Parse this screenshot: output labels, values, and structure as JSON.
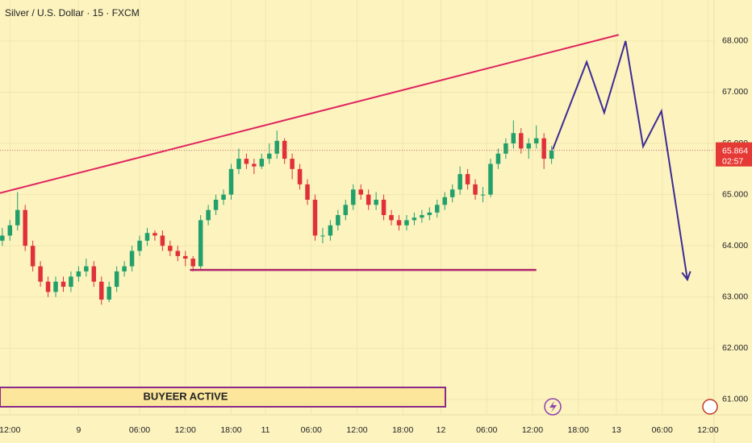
{
  "chart_data": {
    "type": "candlestick",
    "title": "Silver / U.S. Dollar · 15 · FXCM",
    "open": [
      64.1,
      64.2,
      64.4,
      64.7,
      64.0,
      63.6,
      63.3,
      63.1,
      63.3,
      63.2,
      63.4,
      63.5,
      63.6,
      63.3,
      62.95,
      63.2,
      63.5,
      63.6,
      63.9,
      64.1,
      64.25,
      64.2,
      64.0,
      63.9,
      63.8,
      63.75,
      63.6,
      64.5,
      64.7,
      64.9,
      65.0,
      65.5,
      65.7,
      65.6,
      65.55,
      65.7,
      65.8,
      66.05,
      65.7,
      65.5,
      65.2,
      64.9,
      64.2,
      64.2,
      64.4,
      64.6,
      64.8,
      65.1,
      65.0,
      64.8,
      64.9,
      64.6,
      64.5,
      64.4,
      64.5,
      64.55,
      64.6,
      64.65,
      64.8,
      64.95,
      65.1,
      65.4,
      65.2,
      65.0,
      65.0,
      65.6,
      65.8,
      66.0,
      66.2,
      65.9,
      66.0,
      66.1,
      65.7
    ],
    "high": [
      64.35,
      64.5,
      65.05,
      64.8,
      64.1,
      63.7,
      63.4,
      63.4,
      63.4,
      63.5,
      63.6,
      63.75,
      63.7,
      63.4,
      63.3,
      63.6,
      63.7,
      64.0,
      64.2,
      64.35,
      64.3,
      64.3,
      64.1,
      64.0,
      63.9,
      63.8,
      64.6,
      64.8,
      65.0,
      65.1,
      65.6,
      65.9,
      65.8,
      65.7,
      65.8,
      66.0,
      66.25,
      66.1,
      65.8,
      65.6,
      65.3,
      65.0,
      64.35,
      64.5,
      64.7,
      64.9,
      65.2,
      65.2,
      65.1,
      65.05,
      65.0,
      64.7,
      64.6,
      64.6,
      64.65,
      64.7,
      64.75,
      64.9,
      65.05,
      65.2,
      65.55,
      65.5,
      65.3,
      65.15,
      65.7,
      65.9,
      66.1,
      66.45,
      66.3,
      66.1,
      66.35,
      66.2,
      65.95
    ],
    "low": [
      64.0,
      64.1,
      64.3,
      63.9,
      63.5,
      63.2,
      63.0,
      63.0,
      63.1,
      63.1,
      63.3,
      63.4,
      63.2,
      62.85,
      62.9,
      63.1,
      63.4,
      63.5,
      63.8,
      64.0,
      64.1,
      63.9,
      63.8,
      63.7,
      63.6,
      63.5,
      63.55,
      64.4,
      64.6,
      64.8,
      64.9,
      65.4,
      65.5,
      65.4,
      65.5,
      65.6,
      65.7,
      65.6,
      65.3,
      65.1,
      64.8,
      64.1,
      64.05,
      64.1,
      64.3,
      64.5,
      64.7,
      64.9,
      64.7,
      64.7,
      64.5,
      64.4,
      64.3,
      64.3,
      64.4,
      64.45,
      64.5,
      64.55,
      64.7,
      64.85,
      65.0,
      65.1,
      64.9,
      64.85,
      64.95,
      65.5,
      65.7,
      65.9,
      65.8,
      65.7,
      65.9,
      65.5,
      65.6
    ],
    "close": [
      64.2,
      64.4,
      64.7,
      64.0,
      63.6,
      63.3,
      63.1,
      63.3,
      63.2,
      63.4,
      63.5,
      63.6,
      63.3,
      62.95,
      63.2,
      63.5,
      63.6,
      63.9,
      64.1,
      64.25,
      64.2,
      64.0,
      63.9,
      63.8,
      63.75,
      63.6,
      64.5,
      64.7,
      64.9,
      65.0,
      65.5,
      65.7,
      65.6,
      65.55,
      65.7,
      65.8,
      66.05,
      65.7,
      65.5,
      65.2,
      64.9,
      64.2,
      64.2,
      64.4,
      64.6,
      64.8,
      65.1,
      65.0,
      64.8,
      64.9,
      64.6,
      64.5,
      64.4,
      64.5,
      64.55,
      64.6,
      64.65,
      64.8,
      64.95,
      65.1,
      65.4,
      65.2,
      65.0,
      65.0,
      65.6,
      65.8,
      66.0,
      66.2,
      65.9,
      66.0,
      66.1,
      65.7,
      65.86
    ],
    "up_color": "#22a06b",
    "down_color": "#e0303a",
    "xlim": [
      -0.3,
      93.3
    ],
    "xticks": [
      {
        "value": 1,
        "label": "12:00"
      },
      {
        "value": 10,
        "label": "9"
      },
      {
        "value": 18,
        "label": "06:00"
      },
      {
        "value": 24,
        "label": "12:00"
      },
      {
        "value": 30,
        "label": "18:00"
      },
      {
        "value": 34.5,
        "label": "11"
      },
      {
        "value": 40.5,
        "label": "06:00"
      },
      {
        "value": 46.5,
        "label": "12:00"
      },
      {
        "value": 52.5,
        "label": "18:00"
      },
      {
        "value": 57.5,
        "label": "12"
      },
      {
        "value": 63.5,
        "label": "06:00"
      },
      {
        "value": 69.5,
        "label": "12:00"
      },
      {
        "value": 75.5,
        "label": "18:00"
      },
      {
        "value": 80.5,
        "label": "13"
      },
      {
        "value": 86.5,
        "label": "06:00"
      },
      {
        "value": 92.5,
        "label": "12:00"
      }
    ],
    "ylim": [
      60.7,
      68.8
    ],
    "yticks": [
      {
        "value": 61,
        "label": "61.000"
      },
      {
        "value": 62,
        "label": "62.000"
      },
      {
        "value": 63,
        "label": "63.000"
      },
      {
        "value": 64,
        "label": "64.000"
      },
      {
        "value": 65,
        "label": "65.000"
      },
      {
        "value": 66,
        "label": "66.000"
      },
      {
        "value": 67,
        "label": "67.000"
      },
      {
        "value": 68,
        "label": "68.000"
      }
    ],
    "last_price": {
      "value": 65.864,
      "label": "65.864"
    },
    "countdown": "02:57",
    "trendline": {
      "x": [
        -0.3,
        80.8
      ],
      "y": [
        65.03,
        68.12
      ],
      "color": "#e0245e"
    },
    "support": {
      "x": [
        24.6,
        70.0
      ],
      "y": [
        63.53,
        63.53
      ],
      "color": "#b0246a"
    },
    "projection": {
      "x": [
        72.15,
        76.6,
        78.9,
        81.7,
        84.0,
        86.4,
        89.8
      ],
      "y": [
        65.88,
        67.59,
        66.6,
        68.0,
        65.94,
        66.63,
        63.34
      ],
      "color": "#3d2b94"
    },
    "annotation": "BUYEER ACTIVE"
  }
}
